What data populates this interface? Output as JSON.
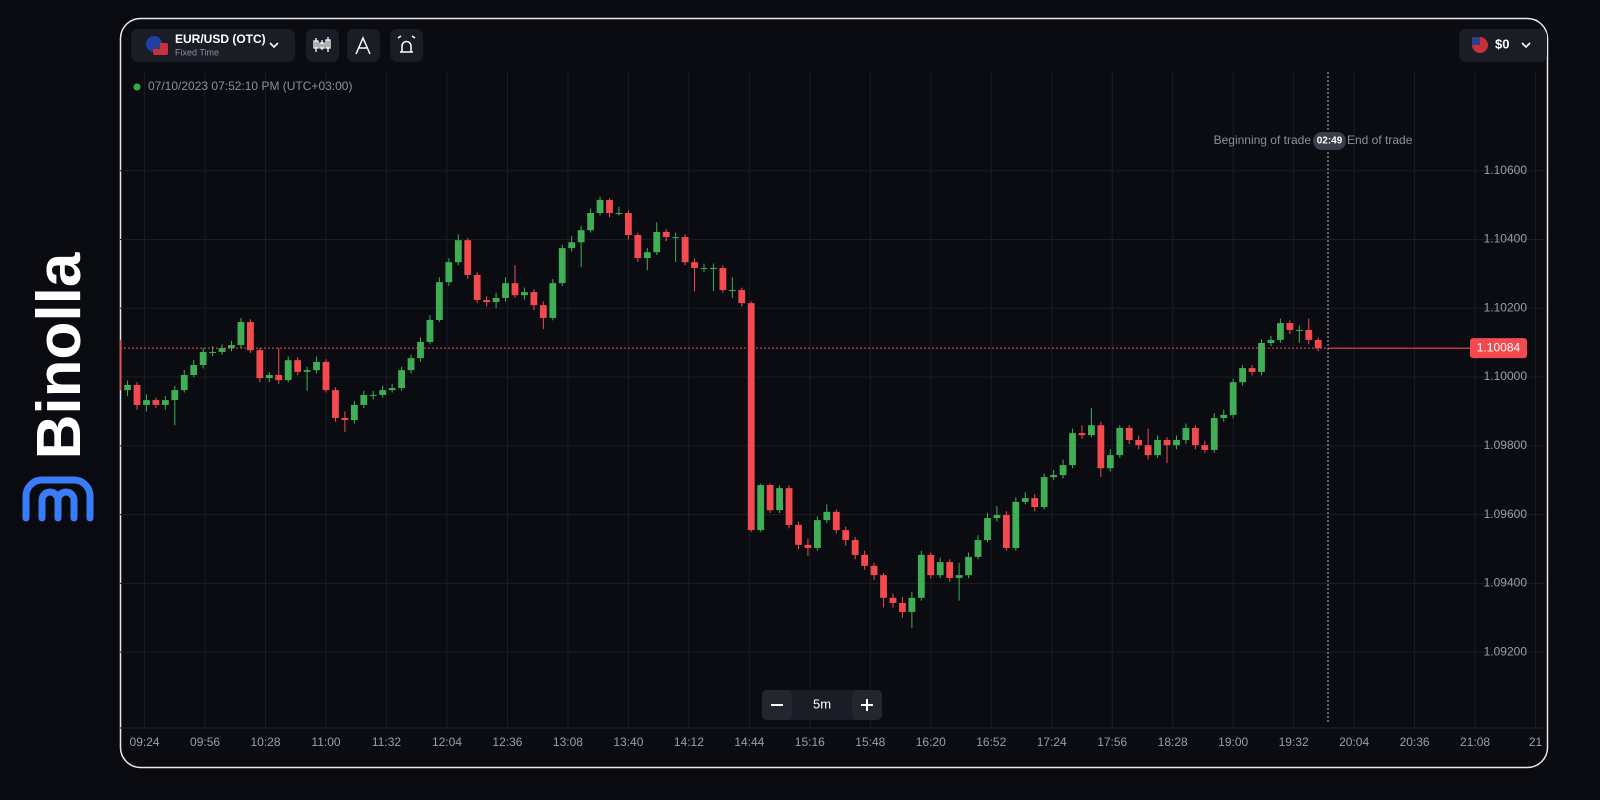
{
  "brand": "Binolla",
  "header": {
    "pair": "EUR/USD (OTC)",
    "mode": "Fixed Time",
    "balance": "$0"
  },
  "timestamp": "07/10/2023 07:52:10 PM (UTC+03:00)",
  "trade_markers": {
    "start": "Beginning of trade",
    "timer": "02:49",
    "end": "End of trade"
  },
  "zoom": {
    "interval": "5m"
  },
  "chart_data": {
    "type": "candlestick",
    "up_color": "#3fae55",
    "down_color": "#f24a4f",
    "grid": true,
    "xlim": [
      551,
      1305
    ],
    "xticks": [
      {
        "value": 564,
        "label": "09:24"
      },
      {
        "value": 596,
        "label": "09:56"
      },
      {
        "value": 628,
        "label": "10:28"
      },
      {
        "value": 660,
        "label": "11:00"
      },
      {
        "value": 692,
        "label": "11:32"
      },
      {
        "value": 724,
        "label": "12:04"
      },
      {
        "value": 756,
        "label": "12:36"
      },
      {
        "value": 788,
        "label": "13:08"
      },
      {
        "value": 820,
        "label": "13:40"
      },
      {
        "value": 852,
        "label": "14:12"
      },
      {
        "value": 884,
        "label": "14:44"
      },
      {
        "value": 916,
        "label": "15:16"
      },
      {
        "value": 948,
        "label": "15:48"
      },
      {
        "value": 980,
        "label": "16:20"
      },
      {
        "value": 1012,
        "label": "16:52"
      },
      {
        "value": 1044,
        "label": "17:24"
      },
      {
        "value": 1076,
        "label": "17:56"
      },
      {
        "value": 1108,
        "label": "18:28"
      },
      {
        "value": 1140,
        "label": "19:00"
      },
      {
        "value": 1172,
        "label": "19:32"
      },
      {
        "value": 1204,
        "label": "20:04"
      },
      {
        "value": 1236,
        "label": "20:36"
      },
      {
        "value": 1268,
        "label": "21:08"
      },
      {
        "value": 1300,
        "label": "21"
      }
    ],
    "ylim": [
      1.08997,
      1.10887
    ],
    "yticks": [
      {
        "value": 1.106,
        "label": "1.10600"
      },
      {
        "value": 1.104,
        "label": "1.10400"
      },
      {
        "value": 1.102,
        "label": "1.10200"
      },
      {
        "value": 1.1,
        "label": "1.10000"
      },
      {
        "value": 1.098,
        "label": "1.09800"
      },
      {
        "value": 1.096,
        "label": "1.09600"
      },
      {
        "value": 1.094,
        "label": "1.09400"
      },
      {
        "value": 1.092,
        "label": "1.09200"
      }
    ],
    "current_price": 1.10084,
    "x": [
      550,
      555,
      560,
      565,
      570,
      575,
      580,
      585,
      590,
      595,
      600,
      605,
      610,
      615,
      620,
      625,
      630,
      635,
      640,
      645,
      650,
      655,
      660,
      665,
      670,
      675,
      680,
      685,
      690,
      695,
      700,
      705,
      710,
      715,
      720,
      725,
      730,
      735,
      740,
      745,
      750,
      755,
      760,
      765,
      770,
      775,
      780,
      785,
      790,
      795,
      800,
      805,
      810,
      815,
      820,
      825,
      830,
      835,
      840,
      845,
      850,
      855,
      860,
      865,
      870,
      875,
      880,
      885,
      890,
      895,
      900,
      905,
      910,
      915,
      920,
      925,
      930,
      935,
      940,
      945,
      950,
      955,
      960,
      965,
      970,
      975,
      980,
      985,
      990,
      995,
      1000,
      1005,
      1010,
      1015,
      1020,
      1025,
      1030,
      1035,
      1040,
      1045,
      1050,
      1055,
      1060,
      1065,
      1070,
      1075,
      1080,
      1085,
      1090,
      1095,
      1100,
      1105,
      1110,
      1115,
      1120,
      1125,
      1130,
      1135,
      1140,
      1145,
      1150,
      1155,
      1160,
      1165,
      1170,
      1175,
      1180,
      1185
    ],
    "ohlc": [
      [
        1.10108,
        1.1012,
        1.0995,
        1.09962
      ],
      [
        1.09962,
        1.0999,
        1.09945,
        1.09977
      ],
      [
        1.09977,
        1.09985,
        1.09905,
        1.09919
      ],
      [
        1.09919,
        1.0995,
        1.099,
        1.09933
      ],
      [
        1.09933,
        1.0994,
        1.0991,
        1.09919
      ],
      [
        1.09919,
        1.09945,
        1.09905,
        1.09933
      ],
      [
        1.09933,
        1.09975,
        1.0986,
        1.09962
      ],
      [
        1.09962,
        1.1002,
        1.09955,
        1.10006
      ],
      [
        1.10006,
        1.1005,
        1.1,
        1.10035
      ],
      [
        1.10035,
        1.10085,
        1.10025,
        1.10073
      ],
      [
        1.10073,
        1.1009,
        1.1006,
        1.10073
      ],
      [
        1.10073,
        1.10095,
        1.10065,
        1.10084
      ],
      [
        1.10084,
        1.10105,
        1.10075,
        1.10093
      ],
      [
        1.10093,
        1.10172,
        1.10085,
        1.1016
      ],
      [
        1.1016,
        1.10168,
        1.1007,
        1.10078
      ],
      [
        1.10078,
        1.10085,
        1.09985,
        1.09997
      ],
      [
        1.09997,
        1.10015,
        1.09985,
        1.10006
      ],
      [
        1.10006,
        1.10085,
        1.0998,
        1.09991
      ],
      [
        1.09991,
        1.1006,
        1.09985,
        1.10049
      ],
      [
        1.10049,
        1.10058,
        1.10005,
        1.10015
      ],
      [
        1.10015,
        1.1003,
        1.0996,
        1.1002
      ],
      [
        1.1002,
        1.1006,
        1.1001,
        1.10044
      ],
      [
        1.10044,
        1.10052,
        1.09955,
        1.09962
      ],
      [
        1.09962,
        1.0997,
        1.0987,
        1.09881
      ],
      [
        1.09881,
        1.099,
        1.0984,
        1.09875
      ],
      [
        1.09875,
        1.0993,
        1.09865,
        1.09919
      ],
      [
        1.09919,
        1.0996,
        1.0991,
        1.09948
      ],
      [
        1.09948,
        1.0996,
        1.09935,
        1.09948
      ],
      [
        1.09948,
        1.09975,
        1.0994,
        1.09962
      ],
      [
        1.09962,
        1.0998,
        1.09955,
        1.09968
      ],
      [
        1.09968,
        1.1003,
        1.0996,
        1.1002
      ],
      [
        1.1002,
        1.10065,
        1.1001,
        1.10055
      ],
      [
        1.10055,
        1.10115,
        1.10045,
        1.10102
      ],
      [
        1.10102,
        1.1018,
        1.10095,
        1.10166
      ],
      [
        1.10166,
        1.1029,
        1.1016,
        1.10276
      ],
      [
        1.10276,
        1.10345,
        1.10265,
        1.10334
      ],
      [
        1.10334,
        1.10415,
        1.10325,
        1.10398
      ],
      [
        1.10398,
        1.10405,
        1.10285,
        1.10297
      ],
      [
        1.10297,
        1.10305,
        1.10215,
        1.10224
      ],
      [
        1.10224,
        1.10235,
        1.10205,
        1.10218
      ],
      [
        1.10218,
        1.10245,
        1.102,
        1.1023
      ],
      [
        1.1023,
        1.1029,
        1.1022,
        1.10273
      ],
      [
        1.10273,
        1.10325,
        1.1023,
        1.10238
      ],
      [
        1.10238,
        1.1026,
        1.10225,
        1.10247
      ],
      [
        1.10247,
        1.10255,
        1.10195,
        1.10209
      ],
      [
        1.10209,
        1.1022,
        1.1014,
        1.10172
      ],
      [
        1.10172,
        1.10285,
        1.10165,
        1.10273
      ],
      [
        1.10273,
        1.10385,
        1.10265,
        1.10375
      ],
      [
        1.10375,
        1.1041,
        1.10365,
        1.10392
      ],
      [
        1.10392,
        1.1044,
        1.1032,
        1.10427
      ],
      [
        1.10427,
        1.1049,
        1.1042,
        1.10477
      ],
      [
        1.10477,
        1.10525,
        1.1047,
        1.10515
      ],
      [
        1.10515,
        1.1052,
        1.10465,
        1.10477
      ],
      [
        1.10477,
        1.10495,
        1.1047,
        1.10477
      ],
      [
        1.10477,
        1.10485,
        1.104,
        1.10413
      ],
      [
        1.10413,
        1.1042,
        1.10335,
        1.10346
      ],
      [
        1.10346,
        1.10375,
        1.1031,
        1.10363
      ],
      [
        1.10363,
        1.1045,
        1.10355,
        1.10422
      ],
      [
        1.10422,
        1.1043,
        1.10395,
        1.10407
      ],
      [
        1.10407,
        1.1042,
        1.10335,
        1.10407
      ],
      [
        1.10407,
        1.10415,
        1.10325,
        1.10334
      ],
      [
        1.10334,
        1.10345,
        1.1025,
        1.10317
      ],
      [
        1.10317,
        1.1033,
        1.10305,
        1.10317
      ],
      [
        1.10317,
        1.1033,
        1.1025,
        1.10317
      ],
      [
        1.10317,
        1.10325,
        1.10245,
        1.10253
      ],
      [
        1.10253,
        1.1029,
        1.1023,
        1.10253
      ],
      [
        1.10253,
        1.1026,
        1.10205,
        1.10215
      ],
      [
        1.10215,
        1.1022,
        1.0955,
        1.09555
      ],
      [
        1.09555,
        1.0969,
        1.0955,
        1.09686
      ],
      [
        1.09686,
        1.0969,
        1.09605,
        1.09613
      ],
      [
        1.09613,
        1.09685,
        1.09605,
        1.09677
      ],
      [
        1.09677,
        1.09685,
        1.0956,
        1.0957
      ],
      [
        1.0957,
        1.0958,
        1.095,
        1.09512
      ],
      [
        1.09512,
        1.0953,
        1.0948,
        1.09503
      ],
      [
        1.09503,
        1.09595,
        1.09495,
        1.09584
      ],
      [
        1.09584,
        1.0963,
        1.09575,
        1.09608
      ],
      [
        1.09608,
        1.09615,
        1.09545,
        1.09555
      ],
      [
        1.09555,
        1.09565,
        1.0951,
        1.09526
      ],
      [
        1.09526,
        1.09535,
        1.0947,
        1.09483
      ],
      [
        1.09483,
        1.09495,
        1.0944,
        1.09451
      ],
      [
        1.09451,
        1.0946,
        1.0941,
        1.09424
      ],
      [
        1.09424,
        1.0943,
        1.0933,
        1.09358
      ],
      [
        1.09358,
        1.0937,
        1.0933,
        1.09343
      ],
      [
        1.09343,
        1.0936,
        1.093,
        1.09317
      ],
      [
        1.09317,
        1.09375,
        1.0927,
        1.09358
      ],
      [
        1.09358,
        1.09495,
        1.0935,
        1.09483
      ],
      [
        1.09483,
        1.0949,
        1.09415,
        1.09424
      ],
      [
        1.09424,
        1.09475,
        1.09415,
        1.09462
      ],
      [
        1.09462,
        1.0947,
        1.09405,
        1.09416
      ],
      [
        1.09416,
        1.0946,
        1.0935,
        1.09424
      ],
      [
        1.09424,
        1.0949,
        1.09415,
        1.09477
      ],
      [
        1.09477,
        1.0954,
        1.0947,
        1.09526
      ],
      [
        1.09526,
        1.09605,
        1.0952,
        1.0959
      ],
      [
        1.0959,
        1.09625,
        1.0958,
        1.09599
      ],
      [
        1.09599,
        1.0961,
        1.09495,
        1.09503
      ],
      [
        1.09503,
        1.0965,
        1.09495,
        1.09637
      ],
      [
        1.09637,
        1.09665,
        1.0963,
        1.09648
      ],
      [
        1.09648,
        1.0966,
        1.0961,
        1.09622
      ],
      [
        1.09622,
        1.0972,
        1.09615,
        1.09709
      ],
      [
        1.09709,
        1.0973,
        1.097,
        1.09715
      ],
      [
        1.09715,
        1.0976,
        1.09705,
        1.09744
      ],
      [
        1.09744,
        1.0985,
        1.09735,
        1.09837
      ],
      [
        1.09837,
        1.0986,
        1.0982,
        1.09831
      ],
      [
        1.09831,
        1.0991,
        1.09825,
        1.0986
      ],
      [
        1.0986,
        1.0987,
        1.0971,
        1.09735
      ],
      [
        1.09735,
        1.0979,
        1.09725,
        1.09773
      ],
      [
        1.09773,
        1.0986,
        1.09765,
        1.09852
      ],
      [
        1.09852,
        1.0986,
        1.09805,
        1.09817
      ],
      [
        1.09817,
        1.0983,
        1.0979,
        1.09802
      ],
      [
        1.09802,
        1.0985,
        1.0976,
        1.09773
      ],
      [
        1.09773,
        1.0983,
        1.09765,
        1.09817
      ],
      [
        1.09817,
        1.09825,
        1.0975,
        1.09802
      ],
      [
        1.09802,
        1.0983,
        1.0979,
        1.09817
      ],
      [
        1.09817,
        1.09865,
        1.09805,
        1.09852
      ],
      [
        1.09852,
        1.0986,
        1.0979,
        1.09802
      ],
      [
        1.09802,
        1.09815,
        1.0978,
        1.09788
      ],
      [
        1.09788,
        1.09895,
        1.0978,
        1.09881
      ],
      [
        1.09881,
        1.09905,
        1.0987,
        1.0989
      ],
      [
        1.0989,
        1.09995,
        1.0988,
        1.09985
      ],
      [
        1.09985,
        1.10035,
        1.09975,
        1.10026
      ],
      [
        1.10026,
        1.10035,
        1.10005,
        1.10015
      ],
      [
        1.10015,
        1.1011,
        1.10005,
        1.10099
      ],
      [
        1.10099,
        1.1012,
        1.1009,
        1.10108
      ],
      [
        1.10108,
        1.1017,
        1.101,
        1.10157
      ],
      [
        1.10157,
        1.10165,
        1.10125,
        1.10137
      ],
      [
        1.10137,
        1.1015,
        1.101,
        1.10137
      ],
      [
        1.10137,
        1.1017,
        1.10095,
        1.10108
      ],
      [
        1.10108,
        1.10115,
        1.10075,
        1.10084
      ]
    ]
  }
}
